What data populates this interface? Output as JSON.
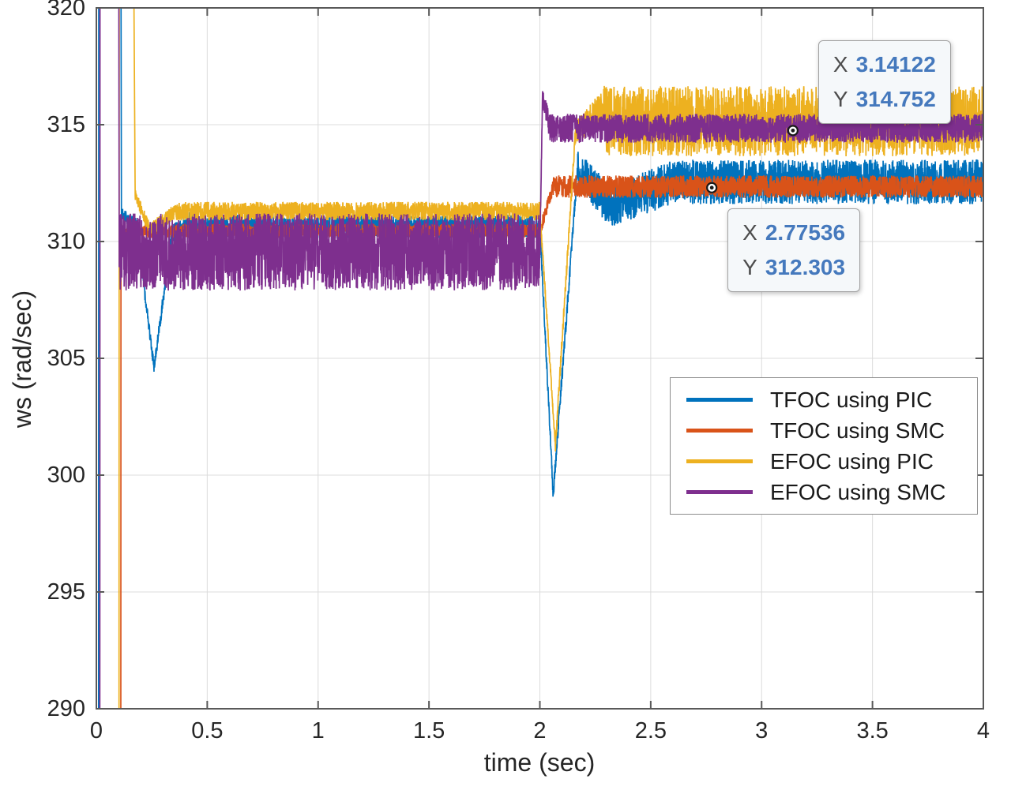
{
  "figure": {
    "background": "#ffffff"
  },
  "chart_data": {
    "type": "line",
    "title": "",
    "xlabel": "time (sec)",
    "ylabel": "ws (rad/sec)",
    "xlim": [
      0,
      4
    ],
    "ylim": [
      290,
      320
    ],
    "xticks": [
      0,
      0.5,
      1,
      1.5,
      2,
      2.5,
      3,
      3.5,
      4
    ],
    "xtick_labels": [
      "0",
      "0.5",
      "1",
      "1.5",
      "2",
      "2.5",
      "3",
      "3.5",
      "4"
    ],
    "yticks": [
      290,
      295,
      300,
      305,
      310,
      315,
      320
    ],
    "ytick_labels": [
      "290",
      "295",
      "300",
      "305",
      "310",
      "315",
      "320"
    ],
    "grid": true,
    "legend": {
      "position": "middle-right"
    },
    "colors": {
      "grid": "#dcdcdc",
      "axes": "#595959",
      "tick_label": "#262626",
      "datatip_value": "#4579bd",
      "datatip_label": "#4d4d4d",
      "datatip_bg": "#f5f8fa",
      "datatip_border": "#a3a3a3",
      "marker": "#1a1a1a"
    },
    "series": [
      {
        "name": "TFOC using PIC",
        "color": "#0072BD",
        "segments": [
          {
            "t": [
              0.004,
              0.012
            ],
            "v": [
              0,
              380
            ],
            "b": [
              0,
              0
            ]
          },
          {
            "t": [
              0.012,
              0.1
            ],
            "v": [
              380,
              380
            ],
            "b": [
              0,
              0
            ]
          },
          {
            "t": [
              0.1,
              0.113
            ],
            "v": [
              380,
              311.2
            ],
            "b": [
              0,
              0
            ]
          },
          {
            "t": [
              0.113,
              0.18
            ],
            "v": [
              311.2,
              310.7
            ],
            "b": [
              0.25,
              0.3
            ]
          },
          {
            "t": [
              0.18,
              0.26
            ],
            "v": [
              310.7,
              304.6
            ],
            "b": [
              0.25,
              0.25
            ]
          },
          {
            "t": [
              0.26,
              0.34
            ],
            "v": [
              304.6,
              310.3
            ],
            "b": [
              0.25,
              0.3
            ]
          },
          {
            "t": [
              0.34,
              0.45
            ],
            "v": [
              310.3,
              311.0
            ],
            "b": [
              0.45,
              0.5
            ]
          },
          {
            "t": [
              0.45,
              2.0
            ],
            "v": [
              310.65,
              310.65
            ],
            "b": [
              0.5,
              0.5
            ]
          },
          {
            "t": [
              2.0,
              2.06
            ],
            "v": [
              310.65,
              299.2
            ],
            "b": [
              0.3,
              0.3
            ]
          },
          {
            "t": [
              2.06,
              2.17
            ],
            "v": [
              299.2,
              313.1
            ],
            "b": [
              0.35,
              0.35
            ]
          },
          {
            "t": [
              2.17,
              2.32
            ],
            "v": [
              313.1,
              311.5
            ],
            "b": [
              0.8,
              0.9
            ]
          },
          {
            "t": [
              2.32,
              2.6
            ],
            "v": [
              311.5,
              312.55
            ],
            "b": [
              0.9,
              0.95
            ]
          },
          {
            "t": [
              2.6,
              4.0
            ],
            "v": [
              312.55,
              312.55
            ],
            "b": [
              0.95,
              0.95
            ]
          }
        ]
      },
      {
        "name": "TFOC using SMC",
        "color": "#D95319",
        "segments": [
          {
            "t": [
              0.1,
              0.111
            ],
            "v": [
              0,
              310.45
            ],
            "b": [
              0,
              0
            ]
          },
          {
            "t": [
              0.111,
              2.0
            ],
            "v": [
              310.45,
              310.45
            ],
            "b": [
              0.3,
              0.3
            ]
          },
          {
            "t": [
              2.0,
              2.06
            ],
            "v": [
              310.45,
              312.35
            ],
            "b": [
              0.3,
              0.3
            ]
          },
          {
            "t": [
              2.06,
              4.0
            ],
            "v": [
              312.35,
              312.35
            ],
            "b": [
              0.48,
              0.48
            ]
          }
        ]
      },
      {
        "name": "EFOC using PIC",
        "color": "#EDB120",
        "segments": [
          {
            "t": [
              0.093,
              0.105
            ],
            "v": [
              0,
              380
            ],
            "b": [
              0,
              0
            ]
          },
          {
            "t": [
              0.105,
              0.13
            ],
            "v": [
              380,
              380
            ],
            "b": [
              0,
              0
            ]
          },
          {
            "t": [
              0.13,
              0.175
            ],
            "v": [
              380,
              312.0
            ],
            "b": [
              0,
              0
            ]
          },
          {
            "t": [
              0.175,
              0.24
            ],
            "v": [
              312.0,
              310.5
            ],
            "b": [
              0.25,
              0.3
            ]
          },
          {
            "t": [
              0.24,
              0.36
            ],
            "v": [
              310.5,
              311.3
            ],
            "b": [
              0.3,
              0.35
            ]
          },
          {
            "t": [
              0.36,
              2.0
            ],
            "v": [
              311.3,
              311.3
            ],
            "b": [
              0.4,
              0.4
            ]
          },
          {
            "t": [
              2.0,
              2.07
            ],
            "v": [
              311.3,
              301.3
            ],
            "b": [
              0.2,
              0.2
            ]
          },
          {
            "t": [
              2.07,
              2.16
            ],
            "v": [
              301.3,
              314.6
            ],
            "b": [
              0.3,
              0.3
            ]
          },
          {
            "t": [
              2.16,
              2.3
            ],
            "v": [
              314.6,
              315.9
            ],
            "b": [
              0.5,
              0.9
            ]
          },
          {
            "t": [
              2.3,
              4.0
            ],
            "v": [
              315.15,
              315.15
            ],
            "b": [
              1.5,
              1.5
            ]
          }
        ]
      },
      {
        "name": "EFOC using SMC",
        "color": "#7E2F8E",
        "segments": [
          {
            "t": [
              0.008,
              0.018
            ],
            "v": [
              0,
              380
            ],
            "b": [
              0,
              0
            ]
          },
          {
            "t": [
              0.018,
              0.092
            ],
            "v": [
              380,
              380
            ],
            "b": [
              0,
              0
            ]
          },
          {
            "t": [
              0.092,
              0.103
            ],
            "v": [
              380,
              309.55
            ],
            "b": [
              0,
              0
            ]
          },
          {
            "t": [
              0.103,
              2.0
            ],
            "v": [
              309.55,
              309.55
            ],
            "b": [
              1.65,
              1.65
            ]
          },
          {
            "t": [
              2.0,
              2.012
            ],
            "v": [
              309.55,
              316.2
            ],
            "b": [
              0.2,
              0.2
            ]
          },
          {
            "t": [
              2.012,
              2.045
            ],
            "v": [
              316.2,
              314.9
            ],
            "b": [
              0.4,
              0.55
            ]
          },
          {
            "t": [
              2.045,
              4.0
            ],
            "v": [
              314.85,
              314.85
            ],
            "b": [
              0.62,
              0.62
            ]
          }
        ]
      }
    ],
    "datatips": [
      {
        "x": 3.14122,
        "y": 314.752,
        "x_label": "X",
        "x_value": "3.14122",
        "y_label": "Y",
        "y_value": "314.752"
      },
      {
        "x": 2.77536,
        "y": 312.303,
        "x_label": "X",
        "x_value": "2.77536",
        "y_label": "Y",
        "y_value": "312.303"
      }
    ]
  }
}
